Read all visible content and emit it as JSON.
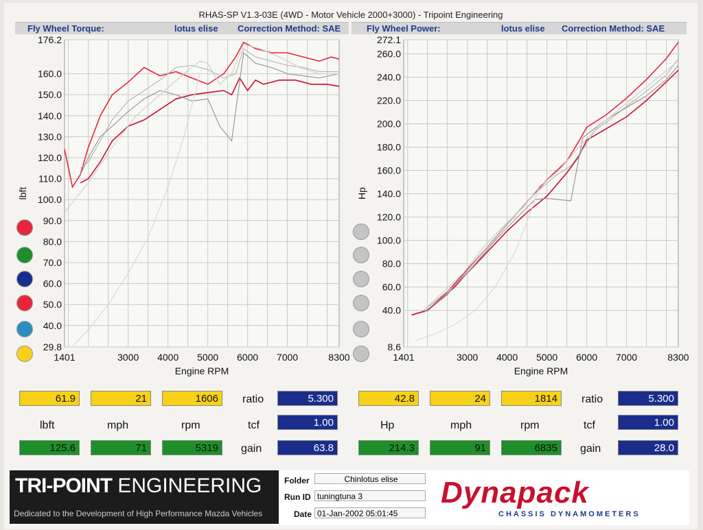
{
  "title": "RHAS-SP V1.3-03E  (4WD - Motor Vehicle 2000+3000) - Tripoint Engineering",
  "colors": {
    "red": "#e8253a",
    "green": "#1e8f2a",
    "navy": "#1a2d8c",
    "crimson": "#c8102e",
    "teal": "#2a8fc0",
    "yellow": "#f7d117",
    "grey": "#c4c4c4"
  },
  "left_header": {
    "name": "Fly Wheel Torque:",
    "vehicle": "lotus elise",
    "correction": "Correction Method: SAE"
  },
  "right_header": {
    "name": "Fly Wheel Power:",
    "vehicle": "lotus elise",
    "correction": "Correction Method: SAE"
  },
  "chart_data": [
    {
      "type": "line",
      "xlabel": "Engine RPM",
      "ylabel": "lbft",
      "xlim": [
        1401,
        8300
      ],
      "ylim": [
        29.8,
        176.2
      ],
      "xticks": [
        "1401",
        "3000",
        "4000",
        "5000",
        "6000",
        "7000",
        "8300"
      ],
      "xtick_values": [
        1401,
        3000,
        4000,
        5000,
        6000,
        7000,
        8300
      ],
      "yticks": [
        "176.2",
        "160.0",
        "150.0",
        "140.0",
        "130.0",
        "120.0",
        "110.0",
        "100.0",
        "90.0",
        "80.0",
        "70.0",
        "60.0",
        "50.0",
        "40.0",
        "29.8"
      ],
      "ytick_values": [
        176.2,
        160,
        150,
        140,
        130,
        120,
        110,
        100,
        90,
        80,
        70,
        60,
        50,
        40,
        29.8
      ],
      "series": [
        {
          "color": "#e8253a",
          "x": [
            1401,
            1600,
            1800,
            2000,
            2300,
            2600,
            3000,
            3400,
            3800,
            4200,
            4600,
            5000,
            5400,
            5700,
            5900,
            6200,
            6600,
            7000,
            7400,
            7800,
            8100,
            8300
          ],
          "y": [
            124,
            106,
            112,
            125,
            140,
            150,
            156,
            163,
            159,
            161,
            158,
            155,
            160,
            168,
            175,
            172,
            170,
            170,
            168,
            166,
            168,
            167
          ]
        },
        {
          "color": "#c8102e",
          "x": [
            1800,
            2000,
            2300,
            2600,
            3000,
            3400,
            3800,
            4200,
            4600,
            5000,
            5400,
            5600,
            5800,
            6000,
            6200,
            6400,
            6800,
            7200,
            7600,
            8000,
            8300
          ],
          "y": [
            108,
            110,
            118,
            128,
            135,
            138,
            143,
            148,
            150,
            151,
            152,
            150,
            158,
            152,
            157,
            155,
            157,
            157,
            155,
            155,
            154
          ]
        },
        {
          "color": "#b8b8b8",
          "x": [
            1800,
            2000,
            2300,
            2600,
            3000,
            3400,
            3800,
            4200,
            4600,
            5000,
            5400,
            5700,
            5900,
            6200,
            6600,
            7000,
            7400,
            7800,
            8300
          ],
          "y": [
            115,
            118,
            128,
            138,
            147,
            152,
            157,
            163,
            164,
            162,
            158,
            160,
            172,
            168,
            166,
            164,
            163,
            161,
            161
          ]
        },
        {
          "color": "#9a9a9a",
          "x": [
            1800,
            2000,
            2300,
            2600,
            3000,
            3400,
            3800,
            4200,
            4600,
            5000,
            5300,
            5600,
            5900,
            6200,
            6600,
            7000,
            7400,
            7800,
            8300
          ],
          "y": [
            112,
            120,
            130,
            135,
            142,
            148,
            152,
            150,
            147,
            148,
            135,
            128,
            170,
            165,
            163,
            160,
            159,
            158,
            160
          ]
        },
        {
          "color": "#d0d0d0",
          "x": [
            1401,
            2000,
            2600,
            3200,
            3800,
            4400,
            4800,
            5000,
            5300,
            5600,
            5900,
            6300,
            6800,
            7300,
            7800,
            8300
          ],
          "y": [
            94,
            108,
            125,
            140,
            150,
            160,
            166,
            165,
            155,
            160,
            174,
            172,
            168,
            163,
            160,
            160
          ]
        },
        {
          "color": "#d8d8d8",
          "x": [
            1601,
            2000,
            2500,
            3000,
            3500,
            4000,
            4400,
            4800
          ],
          "y": [
            30,
            38,
            50,
            65,
            82,
            106,
            130,
            160
          ]
        }
      ]
    },
    {
      "type": "line",
      "xlabel": "Engine RPM",
      "ylabel": "Hp",
      "xlim": [
        1401,
        8300
      ],
      "ylim": [
        8.6,
        272.1
      ],
      "xticks": [
        "1401",
        "3000",
        "4000",
        "5000",
        "6000",
        "7000",
        "8300"
      ],
      "xtick_values": [
        1401,
        3000,
        4000,
        5000,
        6000,
        7000,
        8300
      ],
      "yticks": [
        "272.1",
        "260.0",
        "240.0",
        "220.0",
        "200.0",
        "180.0",
        "160.0",
        "140.0",
        "120.0",
        "100.0",
        "80.0",
        "60.0",
        "40.0",
        "8.6"
      ],
      "ytick_values": [
        272.1,
        260,
        240,
        220,
        200,
        180,
        160,
        140,
        120,
        100,
        80,
        60,
        40,
        8.6
      ],
      "series": [
        {
          "color": "#e8253a",
          "x": [
            1600,
            2000,
            2500,
            3000,
            3500,
            4000,
            4500,
            5000,
            5500,
            5800,
            6000,
            6500,
            7000,
            7500,
            8000,
            8300
          ],
          "y": [
            36,
            40,
            56,
            75,
            94,
            114,
            133,
            152,
            168,
            185,
            197,
            208,
            222,
            238,
            256,
            270
          ]
        },
        {
          "color": "#c8102e",
          "x": [
            1600,
            2000,
            2500,
            3000,
            3500,
            4000,
            4500,
            5000,
            5500,
            5800,
            6000,
            6500,
            7000,
            7500,
            8000,
            8300
          ],
          "y": [
            36,
            40,
            54,
            72,
            90,
            108,
            124,
            138,
            158,
            172,
            186,
            196,
            206,
            220,
            236,
            246
          ]
        },
        {
          "color": "#b8b8b8",
          "x": [
            1900,
            2200,
            2700,
            3200,
            3700,
            4200,
            4700,
            5200,
            5600,
            5900,
            6200,
            6600,
            7000,
            7500,
            8000,
            8300
          ],
          "y": [
            40,
            48,
            62,
            82,
            102,
            122,
            140,
            155,
            164,
            178,
            194,
            204,
            215,
            228,
            242,
            256
          ]
        },
        {
          "color": "#9a9a9a",
          "x": [
            1900,
            2200,
            2700,
            3200,
            3700,
            4200,
            4700,
            5000,
            5300,
            5600,
            5900,
            6200,
            6600,
            7000,
            7500,
            8000,
            8300
          ],
          "y": [
            38,
            46,
            60,
            80,
            100,
            118,
            135,
            136,
            135,
            134,
            188,
            196,
            206,
            214,
            224,
            238,
            250
          ]
        },
        {
          "color": "#d0d0d0",
          "x": [
            1900,
            2400,
            2900,
            3400,
            3900,
            4400,
            4800,
            5300,
            5800,
            6300,
            6800,
            7300,
            7800,
            8300
          ],
          "y": [
            40,
            56,
            72,
            94,
            112,
            128,
            146,
            160,
            180,
            198,
            212,
            226,
            240,
            254
          ]
        },
        {
          "color": "#d8d8d8",
          "x": [
            1700,
            2200,
            2700,
            3200,
            3700,
            4200,
            4600,
            4800
          ],
          "y": [
            14,
            20,
            28,
            40,
            60,
            90,
            125,
            146
          ]
        }
      ]
    }
  ],
  "left_panel": {
    "values_top": [
      "61.9",
      "21",
      "1606"
    ],
    "units": [
      "lbft",
      "mph",
      "rpm"
    ],
    "values_bottom": [
      "125.6",
      "71",
      "5319"
    ],
    "ratio_label": "ratio",
    "ratio": "5.300",
    "tcf_label": "tcf",
    "tcf": "1.00",
    "gain_label": "gain",
    "gain": "63.8"
  },
  "right_panel": {
    "values_top": [
      "42.8",
      "24",
      "1814"
    ],
    "units": [
      "Hp",
      "mph",
      "rpm"
    ],
    "values_bottom": [
      "214.3",
      "91",
      "6835"
    ],
    "ratio_label": "ratio",
    "ratio": "5.300",
    "tcf_label": "tcf",
    "tcf": "1.00",
    "gain_label": "gain",
    "gain": "28.0"
  },
  "left_legend_dots": [
    "#e8253a",
    "#1e8f2a",
    "#1a2d8c",
    "#e8253a",
    "#2a8fc0",
    "#f7d117"
  ],
  "footer": {
    "logo_bold": "TRI-POINT",
    "logo_light": " ENGINEERING",
    "tagline": "Dedicated to the Development of High Performance Mazda Vehicles",
    "folder_label": "Folder",
    "folder": "Chinlotus elise",
    "runid_label": "Run ID",
    "runid": "tuningtuna 3",
    "date_label": "Date",
    "date": "01-Jan-2002  05:01:45",
    "brand": "Dynapack",
    "brand_sub": "CHASSIS  DYNAMOMETERS"
  }
}
